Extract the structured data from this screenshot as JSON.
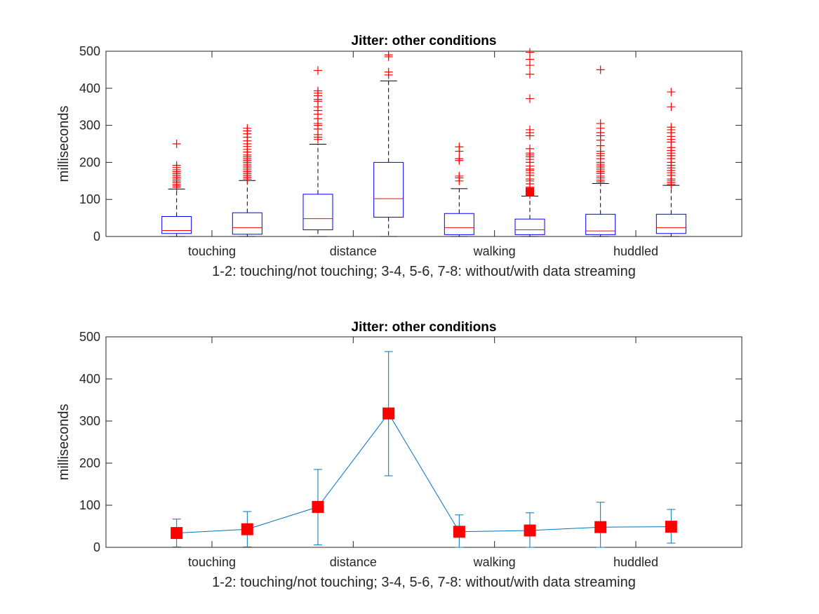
{
  "chart_data": [
    {
      "type": "box",
      "title": "Jitter: other conditions",
      "xlabel": "1-2: touching/not touching; 3-4, 5-6, 7-8: without/with data streaming",
      "ylabel": "milliseconds",
      "ylim": [
        0,
        500
      ],
      "yticks": [
        0,
        100,
        200,
        300,
        400,
        500
      ],
      "categories": [
        "touching",
        "distance",
        "walking",
        "huddled"
      ],
      "category_positions": [
        1.5,
        3.5,
        5.5,
        7.5
      ],
      "xlim": [
        0,
        9
      ],
      "colors": {
        "box": "#0000ff",
        "median": "#ff0000",
        "whisker": "#000000",
        "outlier": "#ff0000"
      },
      "boxes": [
        {
          "x": 1,
          "q1": 8,
          "median": 16,
          "q3": 54,
          "whisker_low": 0,
          "whisker_high": 128,
          "outliers": [
            133,
            137,
            141,
            146,
            150,
            155,
            160,
            165,
            170,
            175,
            180,
            186,
            192,
            250
          ]
        },
        {
          "x": 2,
          "q1": 6,
          "median": 24,
          "q3": 64,
          "whisker_low": 0,
          "whisker_high": 151,
          "outliers": [
            155,
            160,
            165,
            170,
            175,
            180,
            185,
            190,
            195,
            200,
            205,
            210,
            215,
            220,
            228,
            235,
            243,
            250,
            258,
            268,
            277,
            285,
            292
          ]
        },
        {
          "x": 3,
          "q1": 18,
          "median": 48,
          "q3": 114,
          "whisker_low": 0,
          "whisker_high": 249,
          "outliers": [
            262,
            268,
            275,
            290,
            300,
            305,
            318,
            330,
            340,
            350,
            365,
            370,
            380,
            387,
            393,
            448
          ]
        },
        {
          "x": 4,
          "q1": 52,
          "median": 102,
          "q3": 200,
          "whisker_low": 0,
          "whisker_high": 420,
          "outliers": [
            436,
            444,
            485,
            490
          ]
        },
        {
          "x": 5,
          "q1": 5,
          "median": 24,
          "q3": 62,
          "whisker_low": 0,
          "whisker_high": 129,
          "outliers": [
            150,
            158,
            163,
            205,
            210,
            230,
            242
          ]
        },
        {
          "x": 6,
          "q1": 5,
          "median": 18,
          "q3": 47,
          "whisker_low": 0,
          "whisker_high": 109,
          "outliers": [
            113,
            120,
            125,
            133,
            142,
            150,
            155,
            165,
            172,
            178,
            182,
            190,
            200,
            208,
            215,
            220,
            225,
            237,
            272,
            280,
            288,
            372,
            438,
            462,
            478,
            497
          ]
        },
        {
          "x": 7,
          "q1": 5,
          "median": 15,
          "q3": 60,
          "whisker_low": 0,
          "whisker_high": 143,
          "outliers": [
            147,
            152,
            158,
            163,
            170,
            175,
            180,
            185,
            190,
            195,
            200,
            210,
            218,
            224,
            230,
            245,
            260,
            272,
            280,
            292,
            305,
            450
          ]
        },
        {
          "x": 8,
          "q1": 8,
          "median": 24,
          "q3": 60,
          "whisker_low": 0,
          "whisker_high": 138,
          "outliers": [
            140,
            145,
            150,
            155,
            165,
            172,
            178,
            185,
            192,
            200,
            210,
            218,
            225,
            232,
            240,
            255,
            262,
            270,
            280,
            288,
            295,
            350,
            390
          ]
        }
      ]
    },
    {
      "type": "line",
      "title": "Jitter: other conditions",
      "xlabel": "1-2: touching/not touching; 3-4, 5-6, 7-8: without/with data streaming",
      "ylabel": "milliseconds",
      "ylim": [
        0,
        500
      ],
      "yticks": [
        0,
        100,
        200,
        300,
        400,
        500
      ],
      "categories": [
        "touching",
        "distance",
        "walking",
        "huddled"
      ],
      "category_positions": [
        1.5,
        3.5,
        5.5,
        7.5
      ],
      "xlim": [
        0,
        9
      ],
      "colors": {
        "line": "#0072bd",
        "marker": "#ff0000"
      },
      "x": [
        1,
        2,
        3,
        4,
        5,
        6,
        7,
        8
      ],
      "y": [
        34,
        43,
        96,
        318,
        37,
        40,
        48,
        49
      ],
      "err_low": [
        1,
        1,
        6,
        170,
        0,
        0,
        0,
        10
      ],
      "err_high": [
        67,
        85,
        185,
        465,
        77,
        82,
        107,
        90
      ]
    }
  ]
}
